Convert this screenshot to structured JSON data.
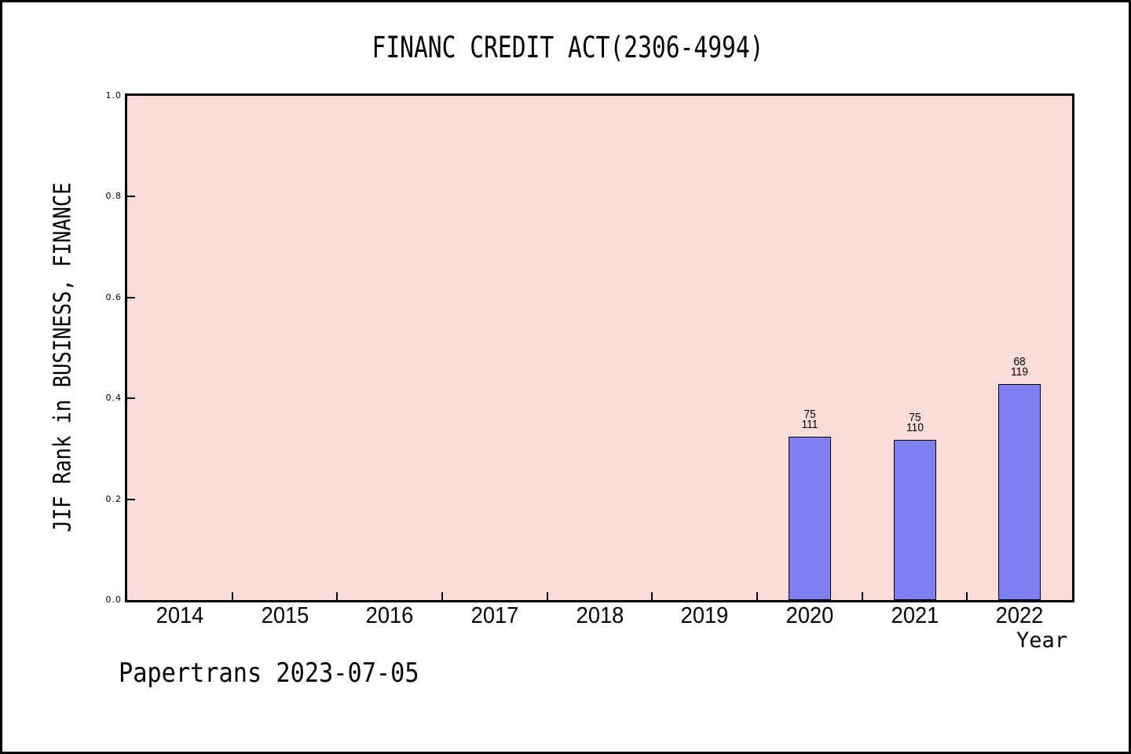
{
  "chart_data": {
    "type": "bar",
    "title": "FINANC CREDIT ACT(2306-4994)",
    "xlabel": "Year",
    "ylabel": "JIF Rank in BUSINESS, FINANCE",
    "footer": "Papertrans 2023-07-05",
    "categories": [
      "2014",
      "2015",
      "2016",
      "2017",
      "2018",
      "2019",
      "2020",
      "2021",
      "2022"
    ],
    "ylim": [
      0.0,
      1.0
    ],
    "ytick_values": [
      0.0,
      0.2,
      0.4,
      0.6,
      0.8,
      1.0
    ],
    "ytick_labels": [
      "0.0",
      "0.2",
      "0.4",
      "0.6",
      "0.8",
      "1.0"
    ],
    "grid": false,
    "legend": false,
    "annotation_format": "rank above total, stacked over each bar",
    "bar_value_rule": "bar height fraction = 1 - rank/total",
    "bars": [
      {
        "year": "2020",
        "rank": 75,
        "total": 111,
        "value": 0.3243
      },
      {
        "year": "2021",
        "rank": 75,
        "total": 110,
        "value": 0.3182
      },
      {
        "year": "2022",
        "rank": 68,
        "total": 119,
        "value": 0.4286
      }
    ],
    "colors": {
      "page_background": "#ffffff",
      "page_border": "#000000",
      "plot_background": "#fcdcd6",
      "bar_fill": "#8080f5",
      "bar_edge": "#000000",
      "axis": "#000000",
      "text": "#000000"
    }
  }
}
